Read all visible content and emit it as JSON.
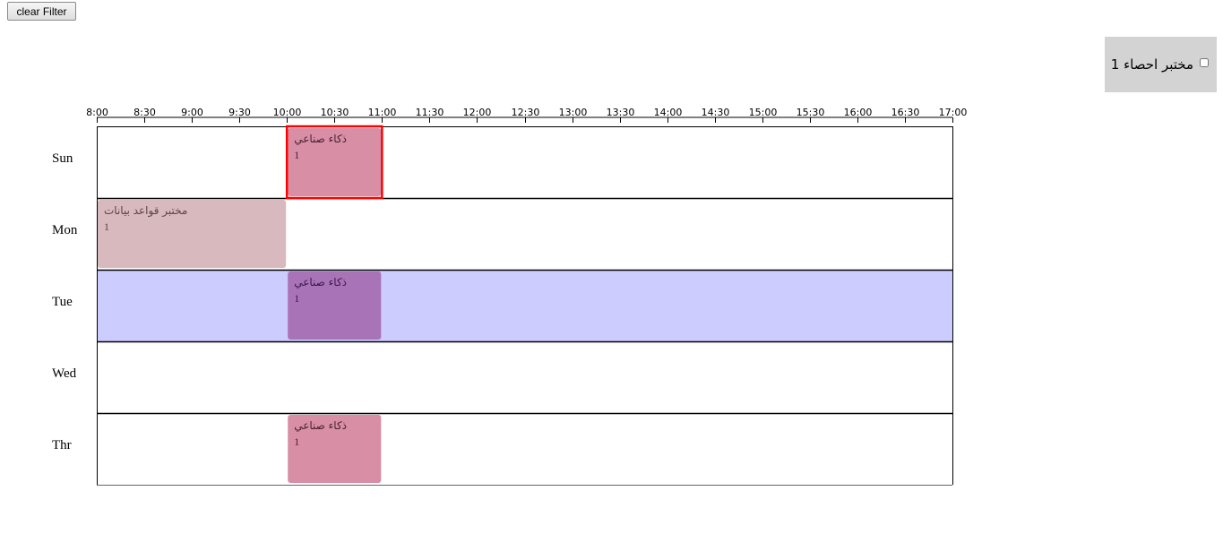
{
  "toolbar": {
    "clear_filter_label": "clear Filter"
  },
  "filter": {
    "label": "مختبر احصاء 1",
    "checked": false,
    "panel_color": "#d3d3d3"
  },
  "timeline": {
    "time_labels": [
      "8:00",
      "8:30",
      "9:00",
      "9:30",
      "10:00",
      "10:30",
      "11:00",
      "11:30",
      "12:00",
      "12:30",
      "13:00",
      "13:30",
      "14:00",
      "14:30",
      "15:00",
      "15:30",
      "16:00",
      "16:30",
      "17:00"
    ],
    "days": [
      {
        "label": "Sun",
        "highlighted": false
      },
      {
        "label": "Mon",
        "highlighted": false
      },
      {
        "label": "Tue",
        "highlighted": true
      },
      {
        "label": "Wed",
        "highlighted": false
      },
      {
        "label": "Thr",
        "highlighted": false
      }
    ],
    "highlight_color": "#ccccff",
    "events": [
      {
        "day": 0,
        "start": "10:00",
        "end": "11:00",
        "title": "ذكاء صناعي",
        "subtitle": "1",
        "color": "#d88ea5",
        "text_color": "#4a2233",
        "selected": true,
        "selected_color": "#ff0000"
      },
      {
        "day": 1,
        "start": "8:00",
        "end": "10:00",
        "title": "مختبر قواعد بيانات",
        "subtitle": "1",
        "color": "#d8b9bd",
        "text_color": "#5a4448",
        "selected": false
      },
      {
        "day": 2,
        "start": "10:00",
        "end": "11:00",
        "title": "ذكاء صناعي",
        "subtitle": "1",
        "color": "#a973b8",
        "text_color": "#3a1a48",
        "selected": false
      },
      {
        "day": 4,
        "start": "10:00",
        "end": "11:00",
        "title": "ذكاء صناعي",
        "subtitle": "1",
        "color": "#d88ea5",
        "text_color": "#4a2233",
        "selected": false
      }
    ]
  }
}
